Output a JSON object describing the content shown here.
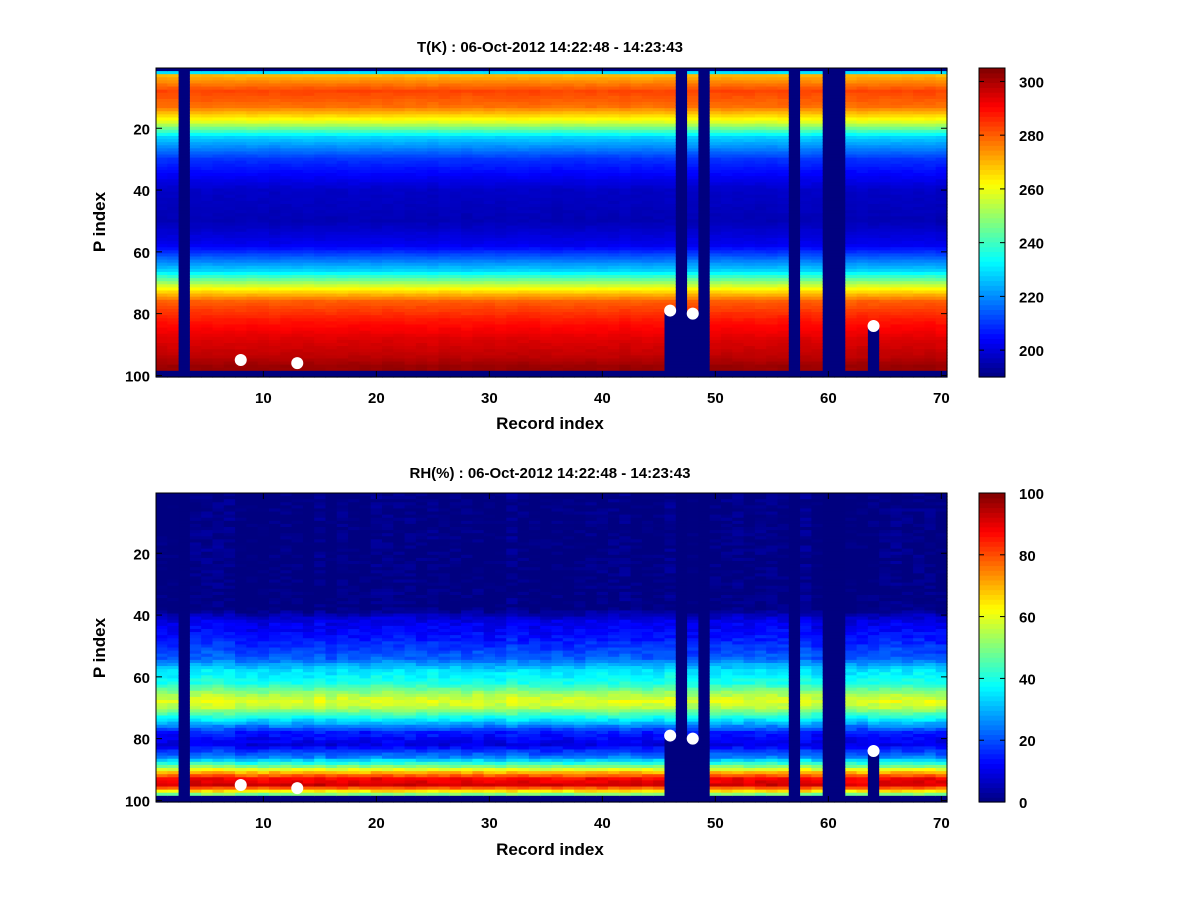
{
  "colors": {
    "background": "#ffffff",
    "marker": "#ffffff",
    "missing": "#00007f",
    "axis": "#000000"
  },
  "chart_data": [
    {
      "type": "heatmap",
      "title": "T(K) : 06-Oct-2012 14:22:48 - 14:23:43",
      "xlabel": "Record index",
      "ylabel": "P index",
      "xlim": [
        0.5,
        70.5
      ],
      "ylim": [
        100.5,
        0.5
      ],
      "xticks": [
        10,
        20,
        30,
        40,
        50,
        60,
        70
      ],
      "yticks": [
        20,
        40,
        60,
        80,
        100
      ],
      "colormap": "jet",
      "colorbar": {
        "min": 190,
        "max": 305,
        "ticks": [
          200,
          220,
          240,
          260,
          280,
          300
        ]
      },
      "missing_columns": [
        3,
        47,
        49,
        57,
        60,
        61
      ],
      "profile": [
        [
          1,
          190
        ],
        [
          3,
          270
        ],
        [
          8,
          283
        ],
        [
          13,
          278
        ],
        [
          18,
          258
        ],
        [
          23,
          228
        ],
        [
          30,
          210
        ],
        [
          40,
          198
        ],
        [
          50,
          196
        ],
        [
          58,
          203
        ],
        [
          66,
          228
        ],
        [
          72,
          262
        ],
        [
          76,
          280
        ],
        [
          82,
          288
        ],
        [
          88,
          294
        ],
        [
          94,
          298
        ],
        [
          97,
          302
        ],
        [
          98,
          302
        ],
        [
          99,
          190
        ],
        [
          100,
          190
        ]
      ],
      "surface_cutoffs": [
        [
          46,
          79
        ],
        [
          48,
          80
        ],
        [
          64,
          84
        ]
      ],
      "markers": [
        {
          "x": 8,
          "y": 95
        },
        {
          "x": 13,
          "y": 96
        },
        {
          "x": 46,
          "y": 79
        },
        {
          "x": 48,
          "y": 80
        },
        {
          "x": 64,
          "y": 84
        }
      ]
    },
    {
      "type": "heatmap",
      "title": "RH(%) : 06-Oct-2012 14:22:48 - 14:23:43",
      "xlabel": "Record index",
      "ylabel": "P index",
      "xlim": [
        0.5,
        70.5
      ],
      "ylim": [
        100.5,
        0.5
      ],
      "xticks": [
        10,
        20,
        30,
        40,
        50,
        60,
        70
      ],
      "yticks": [
        20,
        40,
        60,
        80,
        100
      ],
      "colormap": "jet",
      "colorbar": {
        "min": 0,
        "max": 100,
        "ticks": [
          0,
          20,
          40,
          60,
          80,
          100
        ]
      },
      "missing_columns": [
        3,
        47,
        49,
        57,
        60,
        61
      ],
      "profile": [
        [
          1,
          0
        ],
        [
          38,
          0
        ],
        [
          42,
          10
        ],
        [
          48,
          15
        ],
        [
          54,
          22
        ],
        [
          58,
          35
        ],
        [
          62,
          40
        ],
        [
          66,
          55
        ],
        [
          68,
          60
        ],
        [
          70,
          55
        ],
        [
          74,
          35
        ],
        [
          78,
          15
        ],
        [
          82,
          10
        ],
        [
          86,
          25
        ],
        [
          89,
          50
        ],
        [
          91,
          70
        ],
        [
          93,
          88
        ],
        [
          95,
          92
        ],
        [
          97,
          65
        ],
        [
          98,
          50
        ],
        [
          99,
          0
        ],
        [
          100,
          0
        ]
      ],
      "surface_cutoffs": [
        [
          46,
          79
        ],
        [
          48,
          80
        ],
        [
          64,
          84
        ]
      ],
      "markers": [
        {
          "x": 8,
          "y": 95
        },
        {
          "x": 13,
          "y": 96
        },
        {
          "x": 46,
          "y": 79
        },
        {
          "x": 48,
          "y": 80
        },
        {
          "x": 64,
          "y": 84
        }
      ]
    }
  ]
}
